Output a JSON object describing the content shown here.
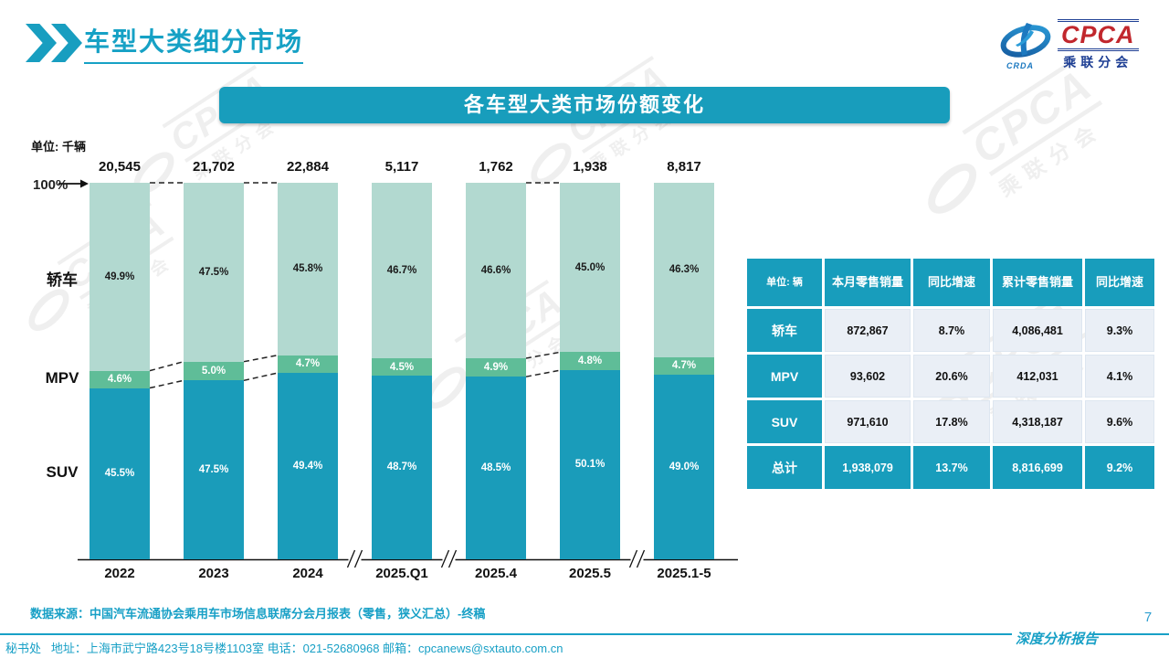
{
  "header": {
    "title": "车型大类细分市场"
  },
  "logo": {
    "brand": "CPCA",
    "brand_sub": "乘联分会",
    "swoosh_caption": "CRDA"
  },
  "banner": {
    "title": "各车型大类市场份额变化"
  },
  "watermark": {
    "brand": "CPCA",
    "sub": "乘联分会"
  },
  "chart": {
    "unit_label": "单位: 千辆",
    "axis_top_label": "100%"
  },
  "chart_data": {
    "type": "bar",
    "stacked": true,
    "percent_axis": true,
    "title": "各车型大类市场份额变化",
    "unit": "千辆",
    "ylim": [
      0,
      100
    ],
    "categories": [
      "2022",
      "2023",
      "2024",
      "2025.Q1",
      "2025.4",
      "2025.5",
      "2025.1-5"
    ],
    "totals": [
      "20,545",
      "21,702",
      "22,884",
      "5,117",
      "1,762",
      "1,938",
      "8,817"
    ],
    "series_order": "top-to-bottom",
    "series": [
      {
        "name": "轿车",
        "values": [
          49.9,
          47.5,
          45.8,
          46.7,
          46.6,
          45.0,
          46.3
        ],
        "color": "#b2d9d0",
        "label_color": "#1b1b1b"
      },
      {
        "name": "MPV",
        "values": [
          4.6,
          5.0,
          4.7,
          4.5,
          4.9,
          4.8,
          4.7
        ],
        "color": "#5fbd98",
        "label_color": "#ffffff"
      },
      {
        "name": "SUV",
        "values": [
          45.5,
          47.5,
          49.4,
          48.7,
          48.5,
          50.1,
          49.0
        ],
        "color": "#1a9cba",
        "label_color": "#ffffff"
      }
    ],
    "connected_pairs": [
      [
        0,
        1
      ],
      [
        1,
        2
      ],
      [
        4,
        5
      ]
    ],
    "axis_breaks_between": [
      [
        2,
        3
      ],
      [
        3,
        4
      ],
      [
        5,
        6
      ]
    ]
  },
  "table": {
    "unit_header": "单位: 辆",
    "columns": [
      "本月零售销量",
      "同比增速",
      "累计零售销量",
      "同比增速"
    ],
    "rows": [
      {
        "label": "轿车",
        "cells": [
          "872,867",
          "8.7%",
          "4,086,481",
          "9.3%"
        ]
      },
      {
        "label": "MPV",
        "cells": [
          "93,602",
          "20.6%",
          "412,031",
          "4.1%"
        ]
      },
      {
        "label": "SUV",
        "cells": [
          "971,610",
          "17.8%",
          "4,318,187",
          "9.6%"
        ]
      },
      {
        "label": "总计",
        "cells": [
          "1,938,079",
          "13.7%",
          "8,816,699",
          "9.2%"
        ]
      }
    ]
  },
  "source_note": "数据来源：中国汽车流通协会乘用车市场信息联席分会月报表（零售，狭义汇总）-终稿",
  "footer": {
    "secretariat": "秘书处",
    "contact": "地址：上海市武宁路423号18号楼1103室 电话：021-52680968  邮箱：cpcanews@sxtauto.com.cn",
    "report_label": "深度分析报告",
    "page_number": "7"
  },
  "colors": {
    "accent_teal": "#189dbc",
    "title_teal": "#16a1c5",
    "sedan_green": "#b2d9d0",
    "mpv_green": "#5fbd98",
    "suv_teal": "#1a9cba",
    "table_cell_bg": "#eaeff6",
    "logo_navy": "#1e3f94",
    "logo_red": "#c1272d"
  }
}
